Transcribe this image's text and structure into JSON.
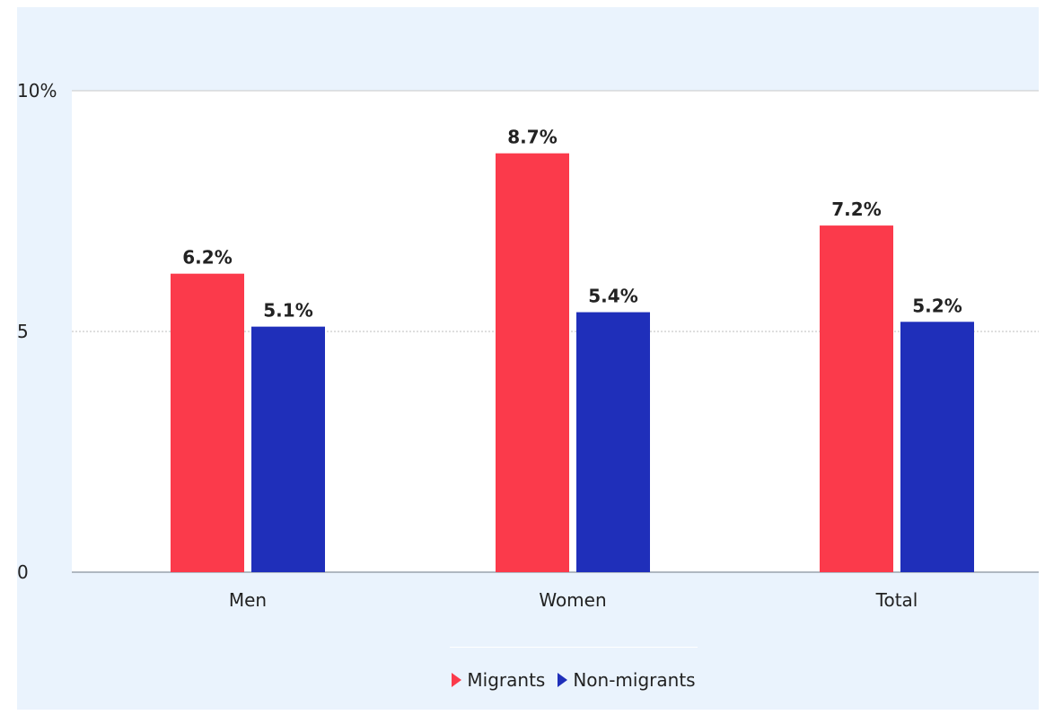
{
  "chart_data": {
    "type": "bar",
    "categories": [
      "Men",
      "Women",
      "Total"
    ],
    "series": [
      {
        "name": "Migrants",
        "values": [
          6.2,
          8.7,
          7.2
        ],
        "labels": [
          "6.2%",
          "8.7%",
          "7.2%"
        ],
        "color": "#fb3a4b"
      },
      {
        "name": "Non-migrants",
        "values": [
          5.1,
          5.4,
          5.2
        ],
        "labels": [
          "5.1%",
          "5.4%",
          "5.2%"
        ],
        "color": "#1f2fba"
      }
    ],
    "yticks": [
      {
        "value": 0,
        "label": "0"
      },
      {
        "value": 5,
        "label": "5"
      },
      {
        "value": 10,
        "label": "10%"
      }
    ],
    "ylim": [
      0,
      10
    ],
    "title": "",
    "xlabel": "",
    "ylabel": "",
    "grid": true,
    "legend_position": "bottom-center",
    "colors": {
      "panel_background": "#eaf3fd",
      "plot_background": "#ffffff",
      "axis_line": "#9aa3ad",
      "grid_line": "#bdbdbd",
      "text": "#222222"
    }
  }
}
